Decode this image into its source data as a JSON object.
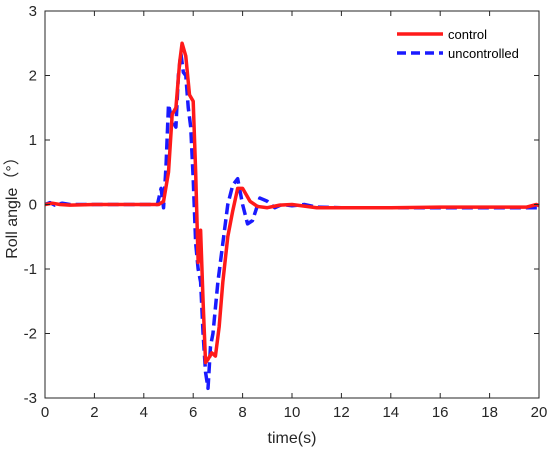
{
  "chart_data": {
    "type": "line",
    "xlabel": "time(s)",
    "ylabel": "Roll angle（°）",
    "xlim": [
      0,
      20
    ],
    "ylim": [
      -3,
      3
    ],
    "x_ticks": [
      0,
      2,
      4,
      6,
      8,
      10,
      12,
      14,
      16,
      18,
      20
    ],
    "y_ticks": [
      -3,
      -2,
      -1,
      0,
      1,
      2,
      3
    ],
    "grid": false,
    "legend_position": "top-right",
    "series": [
      {
        "name": "control",
        "color": "#ff1a1a",
        "style": "solid",
        "x": [
          0,
          0.3,
          0.6,
          1.0,
          2.0,
          3.0,
          4.0,
          4.6,
          4.8,
          5.0,
          5.15,
          5.3,
          5.45,
          5.55,
          5.7,
          5.85,
          6.0,
          6.1,
          6.2,
          6.3,
          6.4,
          6.5,
          6.6,
          6.75,
          6.9,
          7.05,
          7.2,
          7.4,
          7.6,
          7.8,
          8.0,
          8.3,
          8.6,
          9.0,
          9.5,
          10.0,
          11.0,
          12.0,
          14.0,
          16.0,
          18.0,
          19.5,
          19.9,
          20.0
        ],
        "y": [
          0,
          0.02,
          0,
          -0.01,
          0,
          0,
          0,
          0,
          0.05,
          0.5,
          1.4,
          1.5,
          2.2,
          2.5,
          2.3,
          1.7,
          1.6,
          0.5,
          -0.9,
          -0.4,
          -1.5,
          -2.45,
          -2.4,
          -2.3,
          -2.35,
          -1.9,
          -1.2,
          -0.5,
          -0.1,
          0.25,
          0.25,
          0.05,
          -0.03,
          -0.05,
          -0.01,
          0,
          -0.05,
          -0.05,
          -0.05,
          -0.04,
          -0.04,
          -0.04,
          0,
          -0.02
        ]
      },
      {
        "name": "uncontrolled",
        "color": "#1a1aff",
        "style": "dashed",
        "x": [
          0,
          0.2,
          0.4,
          0.7,
          1.0,
          2.0,
          3.0,
          4.0,
          4.55,
          4.7,
          4.8,
          4.9,
          5.0,
          5.15,
          5.3,
          5.4,
          5.5,
          5.6,
          5.7,
          5.8,
          5.9,
          6.0,
          6.1,
          6.2,
          6.3,
          6.4,
          6.5,
          6.6,
          6.7,
          6.8,
          7.0,
          7.2,
          7.4,
          7.6,
          7.8,
          8.0,
          8.2,
          8.4,
          8.7,
          9.0,
          9.3,
          9.6,
          10.0,
          10.5,
          11.0,
          12.0,
          14.0,
          16.0,
          18.0,
          19.8,
          20.0
        ],
        "y": [
          0,
          0.03,
          -0.01,
          0.02,
          0,
          0,
          0,
          0,
          0,
          0.25,
          -0.05,
          0.6,
          1.55,
          1.3,
          1.2,
          2.0,
          2.35,
          2.05,
          2.0,
          1.5,
          1.2,
          0.4,
          -0.6,
          -1.0,
          -1.2,
          -2.0,
          -2.6,
          -2.85,
          -2.2,
          -2.0,
          -1.2,
          -0.6,
          0.0,
          0.3,
          0.4,
          0.0,
          -0.3,
          -0.25,
          0.1,
          0.05,
          -0.05,
          0.0,
          -0.02,
          0.0,
          -0.04,
          -0.05,
          -0.05,
          -0.05,
          -0.05,
          -0.05,
          -0.05
        ]
      }
    ]
  }
}
